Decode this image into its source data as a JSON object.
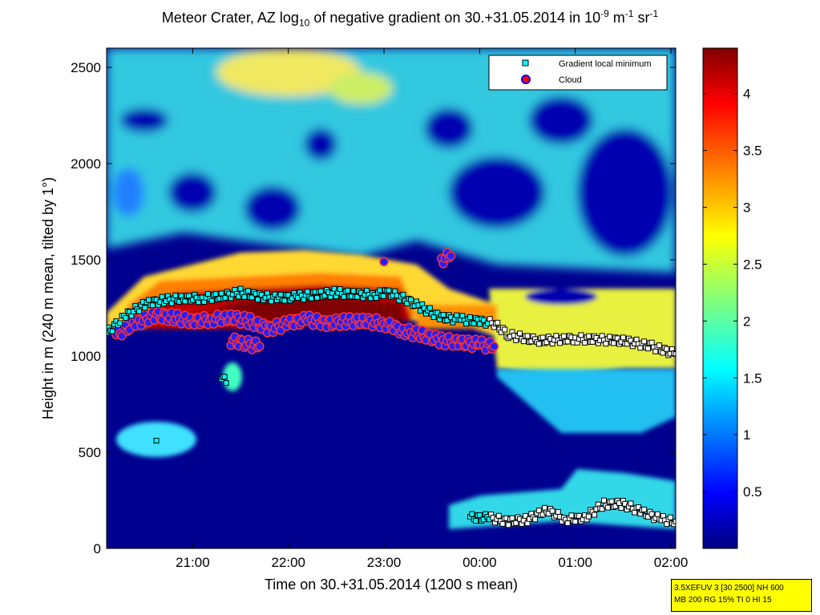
{
  "title_parts": {
    "a": "Meteor Crater, AZ log",
    "sub": "10",
    "b": " of negative gradient on 30.+31.05.2014 in 10",
    "sup1": "-9",
    "c": " m",
    "sup2": "-1",
    "d": " sr",
    "sup3": "-1"
  },
  "info_box": {
    "line1": "3.5XEFUV 3 [30 2500] NH 600",
    "line2": "MB 200 RG 15% TI 0 HI 15"
  },
  "chart_data": {
    "type": "heatmap",
    "xlabel": "Time on 30.+31.05.2014 (1200 s mean)",
    "ylabel": "Height in m (240 m mean, tilted by 1°)",
    "x_range_hours": [
      20.1,
      26.05
    ],
    "ylim": [
      0,
      2600
    ],
    "x_ticks": [
      {
        "value": 21,
        "label": "21:00"
      },
      {
        "value": 22,
        "label": "22:00"
      },
      {
        "value": 23,
        "label": "23:00"
      },
      {
        "value": 24,
        "label": "00:00"
      },
      {
        "value": 25,
        "label": "01:00"
      },
      {
        "value": 26,
        "label": "02:00"
      }
    ],
    "y_ticks": [
      0,
      500,
      1000,
      1500,
      2000,
      2500
    ],
    "colorbar": {
      "colormap": "jet",
      "range": [
        0,
        4.4
      ],
      "ticks": [
        "0.5",
        "1",
        "1.5",
        "2",
        "2.5",
        "3",
        "3.5",
        "4"
      ]
    },
    "legend": {
      "placement": "top-right",
      "entries": [
        {
          "label": "Gradient local minimum",
          "marker": "square",
          "color": "#00ffff"
        },
        {
          "label": "Cloud",
          "marker": "circle",
          "color": "#ff0000"
        }
      ]
    },
    "series": [
      {
        "name": "Gradient local minimum",
        "points": [
          [
            20.1,
            1120
          ],
          [
            20.3,
            1210
          ],
          [
            20.5,
            1270
          ],
          [
            20.7,
            1290
          ],
          [
            20.9,
            1300
          ],
          [
            21.1,
            1300
          ],
          [
            21.3,
            1310
          ],
          [
            21.5,
            1330
          ],
          [
            21.7,
            1310
          ],
          [
            21.9,
            1300
          ],
          [
            22.1,
            1310
          ],
          [
            22.3,
            1320
          ],
          [
            22.5,
            1330
          ],
          [
            22.7,
            1320
          ],
          [
            22.9,
            1320
          ],
          [
            23.05,
            1330
          ],
          [
            23.2,
            1300
          ],
          [
            23.4,
            1250
          ],
          [
            23.6,
            1200
          ],
          [
            23.8,
            1190
          ],
          [
            24.0,
            1180
          ],
          [
            24.15,
            1170
          ],
          [
            24.3,
            1110
          ],
          [
            24.6,
            1080
          ],
          [
            25.0,
            1090
          ],
          [
            25.5,
            1080
          ],
          [
            25.8,
            1050
          ],
          [
            26.05,
            1010
          ],
          [
            23.9,
            160
          ],
          [
            24.1,
            160
          ],
          [
            24.3,
            140
          ],
          [
            24.5,
            150
          ],
          [
            24.7,
            200
          ],
          [
            24.9,
            150
          ],
          [
            25.1,
            160
          ],
          [
            25.3,
            230
          ],
          [
            25.5,
            230
          ],
          [
            25.7,
            190
          ],
          [
            25.9,
            150
          ],
          [
            26.05,
            140
          ],
          [
            21.3,
            900
          ],
          [
            21.35,
            860
          ],
          [
            20.62,
            560
          ]
        ]
      },
      {
        "name": "Cloud",
        "points": [
          [
            20.2,
            1110
          ],
          [
            20.4,
            1170
          ],
          [
            20.6,
            1210
          ],
          [
            20.8,
            1200
          ],
          [
            21.0,
            1180
          ],
          [
            21.2,
            1190
          ],
          [
            21.4,
            1200
          ],
          [
            21.6,
            1180
          ],
          [
            21.8,
            1140
          ],
          [
            22.0,
            1170
          ],
          [
            22.2,
            1190
          ],
          [
            22.4,
            1170
          ],
          [
            22.6,
            1180
          ],
          [
            22.8,
            1180
          ],
          [
            23.0,
            1170
          ],
          [
            23.2,
            1130
          ],
          [
            23.4,
            1110
          ],
          [
            23.6,
            1080
          ],
          [
            23.8,
            1070
          ],
          [
            24.0,
            1060
          ],
          [
            24.15,
            1050
          ],
          [
            21.4,
            1080
          ],
          [
            21.7,
            1050
          ],
          [
            23.0,
            1490
          ],
          [
            23.6,
            1500
          ],
          [
            23.7,
            1520
          ]
        ]
      }
    ]
  }
}
